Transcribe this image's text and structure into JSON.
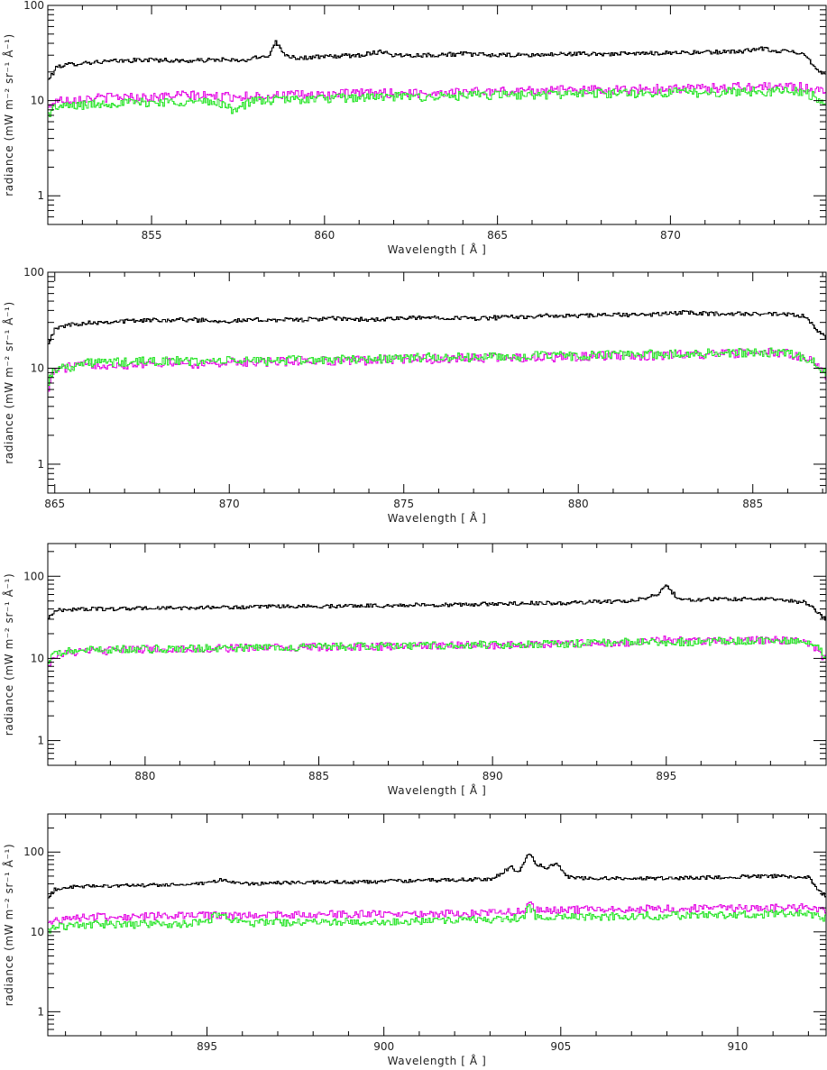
{
  "chart_data": [
    {
      "type": "line",
      "title": "",
      "xlabel": "Wavelength [ Å ]",
      "ylabel": "radiance (mW m⁻² sr⁻¹ Å⁻¹)",
      "xlim": [
        852,
        874.5
      ],
      "ylim": [
        0.5,
        100
      ],
      "yscale": "log",
      "xticks": [
        855,
        860,
        865,
        870
      ],
      "yticks": [
        1,
        10,
        100
      ],
      "grid": false,
      "series": [
        {
          "color": "#000000",
          "x": [
            852,
            852.3,
            853,
            854,
            855,
            856,
            857,
            857.6,
            858,
            858.4,
            858.6,
            858.8,
            859.2,
            860,
            861,
            861.7,
            862,
            863,
            864,
            865,
            866,
            867,
            868,
            869,
            870,
            871,
            872,
            872.7,
            873,
            873.4,
            873.8,
            874,
            874.2,
            874.5
          ],
          "values": [
            16,
            23,
            25,
            26,
            27,
            26,
            27,
            26,
            28,
            30,
            42,
            31,
            28,
            29,
            30,
            33,
            30,
            30,
            31,
            30,
            30,
            31,
            31,
            31,
            32,
            32,
            33,
            35,
            33,
            33,
            32,
            28,
            21,
            19
          ]
        },
        {
          "color": "#e619e6",
          "x": [
            852,
            852.2,
            853,
            854,
            855,
            856,
            857,
            858,
            859,
            860,
            861,
            862,
            863,
            864,
            865,
            866,
            867,
            868,
            869,
            870,
            871,
            872,
            873,
            873.8,
            874.2,
            874.5
          ],
          "values": [
            8,
            10,
            10.5,
            11,
            10.8,
            11.5,
            11,
            11.2,
            11.5,
            11.5,
            12,
            12,
            12,
            12.5,
            12.5,
            12.8,
            13,
            13,
            13.2,
            13.5,
            13.5,
            14,
            14,
            14,
            13,
            12
          ]
        },
        {
          "color": "#33e633",
          "x": [
            852,
            852.2,
            853,
            854,
            855,
            856,
            857,
            857.3,
            858,
            859,
            860,
            861,
            862,
            863,
            864,
            865,
            866,
            867,
            868,
            869,
            870,
            871,
            872,
            873,
            873.8,
            874.2,
            874.5
          ],
          "values": [
            7,
            8.5,
            9,
            9.5,
            9.6,
            9.8,
            9.5,
            8,
            10,
            10.3,
            10.5,
            10.8,
            11,
            11,
            11.2,
            11.5,
            11.5,
            11.8,
            12,
            12,
            12.2,
            12.2,
            12.5,
            12.5,
            12.5,
            11,
            9
          ]
        }
      ]
    },
    {
      "type": "line",
      "title": "",
      "xlabel": "Wavelength [ Å ]",
      "ylabel": "radiance (mW m⁻² sr⁻¹ Å⁻¹)",
      "xlim": [
        864.8,
        887.1
      ],
      "ylim": [
        0.5,
        100
      ],
      "yscale": "log",
      "xticks": [
        865,
        870,
        875,
        880,
        885
      ],
      "yticks": [
        1,
        10,
        100
      ],
      "grid": false,
      "series": [
        {
          "color": "#000000",
          "x": [
            864.8,
            865,
            865.3,
            866,
            867,
            868,
            869,
            870,
            871,
            872,
            873,
            874,
            875,
            876,
            877,
            878,
            879,
            880,
            881,
            882,
            883,
            884,
            885,
            886,
            886.5,
            886.8,
            887.1
          ],
          "values": [
            18,
            25,
            28,
            30,
            31,
            32,
            32,
            31,
            32,
            32,
            33,
            32,
            33,
            34,
            33,
            34,
            35,
            35,
            36,
            36,
            38,
            37,
            37,
            36,
            35,
            25,
            21
          ]
        },
        {
          "color": "#e619e6",
          "x": [
            864.8,
            865,
            865.5,
            866,
            867,
            868,
            869,
            870,
            871,
            872,
            873,
            874,
            875,
            876,
            877,
            878,
            879,
            880,
            881,
            882,
            883,
            884,
            885,
            886,
            886.7,
            887.1
          ],
          "values": [
            6,
            9.5,
            10.5,
            11,
            11,
            11.5,
            11.2,
            11.5,
            11.5,
            12,
            12,
            12.2,
            12.5,
            12.5,
            12.8,
            13,
            13,
            13.2,
            13.5,
            13.5,
            14,
            14,
            14.5,
            14.5,
            12,
            8
          ]
        },
        {
          "color": "#33e633",
          "x": [
            864.8,
            865,
            865.5,
            866,
            867,
            868,
            869,
            870,
            871,
            872,
            873,
            874,
            875,
            876,
            877,
            878,
            879,
            880,
            881,
            882,
            883,
            884,
            885,
            886,
            886.7,
            887.1
          ],
          "values": [
            7,
            10,
            10.5,
            11.5,
            11.5,
            12,
            11.8,
            12,
            12,
            12.2,
            12.3,
            12.5,
            12.8,
            13,
            13,
            13.2,
            13.5,
            13.5,
            13.8,
            14,
            14,
            14.5,
            14.5,
            15,
            12,
            8.5
          ]
        }
      ]
    },
    {
      "type": "line",
      "title": "",
      "xlabel": "Wavelength [ Å ]",
      "ylabel": "radiance (mW m⁻² sr⁻¹ Å⁻¹)",
      "xlim": [
        877.2,
        899.6
      ],
      "ylim": [
        0.5,
        250
      ],
      "yscale": "log",
      "xticks": [
        880,
        885,
        890,
        895
      ],
      "yticks": [
        1,
        10,
        100
      ],
      "grid": false,
      "series": [
        {
          "color": "#000000",
          "x": [
            877.2,
            877.4,
            878,
            879,
            880,
            881,
            882,
            883,
            884,
            885,
            886,
            887,
            888,
            889,
            890,
            891,
            892,
            893,
            894,
            894.8,
            895,
            895.2,
            895.4,
            896,
            897,
            898,
            899,
            899.3,
            899.6
          ],
          "values": [
            30,
            38,
            40,
            40,
            41,
            41,
            42,
            42,
            43,
            43,
            44,
            44,
            45,
            45,
            46,
            47,
            47,
            49,
            50,
            60,
            80,
            62,
            52,
            52,
            53,
            53,
            48,
            38,
            30
          ]
        },
        {
          "color": "#e619e6",
          "x": [
            877.2,
            877.4,
            878,
            879,
            880,
            881,
            882,
            883,
            884,
            885,
            886,
            887,
            888,
            889,
            890,
            891,
            892,
            893,
            894,
            895,
            896,
            897,
            898,
            899,
            899.4,
            899.6
          ],
          "values": [
            8,
            11,
            12,
            12.5,
            13,
            13,
            13.2,
            13.5,
            13.5,
            13.8,
            14,
            14,
            14.2,
            14.5,
            14.5,
            15,
            15,
            15.5,
            15.5,
            17,
            16.5,
            16.5,
            17,
            16,
            12,
            9
          ]
        },
        {
          "color": "#33e633",
          "x": [
            877.2,
            877.4,
            878,
            879,
            880,
            881,
            882,
            883,
            884,
            885,
            886,
            887,
            888,
            889,
            890,
            891,
            892,
            893,
            894,
            895,
            896,
            897,
            898,
            899,
            899.4,
            899.6
          ],
          "values": [
            8.5,
            11.5,
            12.5,
            13,
            13,
            13.2,
            13.5,
            13.5,
            13.8,
            14,
            14,
            14.2,
            14.5,
            14.5,
            14.8,
            15,
            15.2,
            15.5,
            15.8,
            16,
            16,
            16.5,
            16.5,
            16,
            13,
            10
          ]
        }
      ]
    },
    {
      "type": "line",
      "title": "",
      "xlabel": "Wavelength [ Å ]",
      "ylabel": "radiance (mW m⁻² sr⁻¹ Å⁻¹)",
      "xlim": [
        890.5,
        912.5
      ],
      "ylim": [
        0.5,
        300
      ],
      "yscale": "log",
      "xticks": [
        895,
        900,
        905,
        910
      ],
      "yticks": [
        1,
        10,
        100
      ],
      "grid": false,
      "series": [
        {
          "color": "#000000",
          "x": [
            890.5,
            890.7,
            891,
            892,
            893,
            894,
            895,
            895.4,
            896,
            897,
            898,
            899,
            900,
            901,
            902,
            903,
            903.3,
            903.6,
            903.8,
            904,
            904.1,
            904.3,
            904.6,
            904.9,
            905.2,
            906,
            907,
            908,
            909,
            910,
            911,
            912,
            912.3,
            912.5
          ],
          "values": [
            25,
            34,
            36,
            38,
            38,
            39,
            40,
            45,
            40,
            41,
            42,
            42,
            43,
            44,
            45,
            46,
            52,
            66,
            55,
            80,
            100,
            72,
            62,
            72,
            48,
            47,
            47,
            47,
            48,
            49,
            50,
            48,
            32,
            28
          ]
        },
        {
          "color": "#e619e6",
          "x": [
            890.5,
            890.7,
            891,
            892,
            893,
            894,
            895,
            896,
            897,
            898,
            899,
            900,
            901,
            902,
            903,
            904,
            904.1,
            904.3,
            905,
            906,
            907,
            908,
            909,
            910,
            911,
            912,
            912.5
          ],
          "values": [
            12,
            14,
            15,
            15.5,
            15.5,
            16,
            16,
            16.2,
            16.5,
            16.5,
            16.8,
            17,
            17,
            17.2,
            17.5,
            18,
            24,
            19,
            19,
            19,
            19.5,
            19.5,
            20,
            20,
            20,
            20.5,
            19
          ]
        },
        {
          "color": "#33e633",
          "x": [
            890.5,
            890.7,
            891,
            892,
            893,
            894,
            895,
            895.3,
            896,
            897,
            898,
            899,
            900,
            901,
            902,
            903,
            904,
            904.1,
            904.3,
            905,
            906,
            907,
            908,
            909,
            910,
            911,
            912,
            912.5
          ],
          "values": [
            10,
            11.5,
            12,
            12.5,
            12.5,
            12.5,
            13,
            17,
            13,
            13.2,
            13.2,
            13.5,
            13.5,
            13.8,
            14,
            14.5,
            15,
            21,
            16,
            15.5,
            15.5,
            16,
            16,
            16.5,
            16.5,
            17,
            17,
            15
          ]
        }
      ]
    }
  ]
}
